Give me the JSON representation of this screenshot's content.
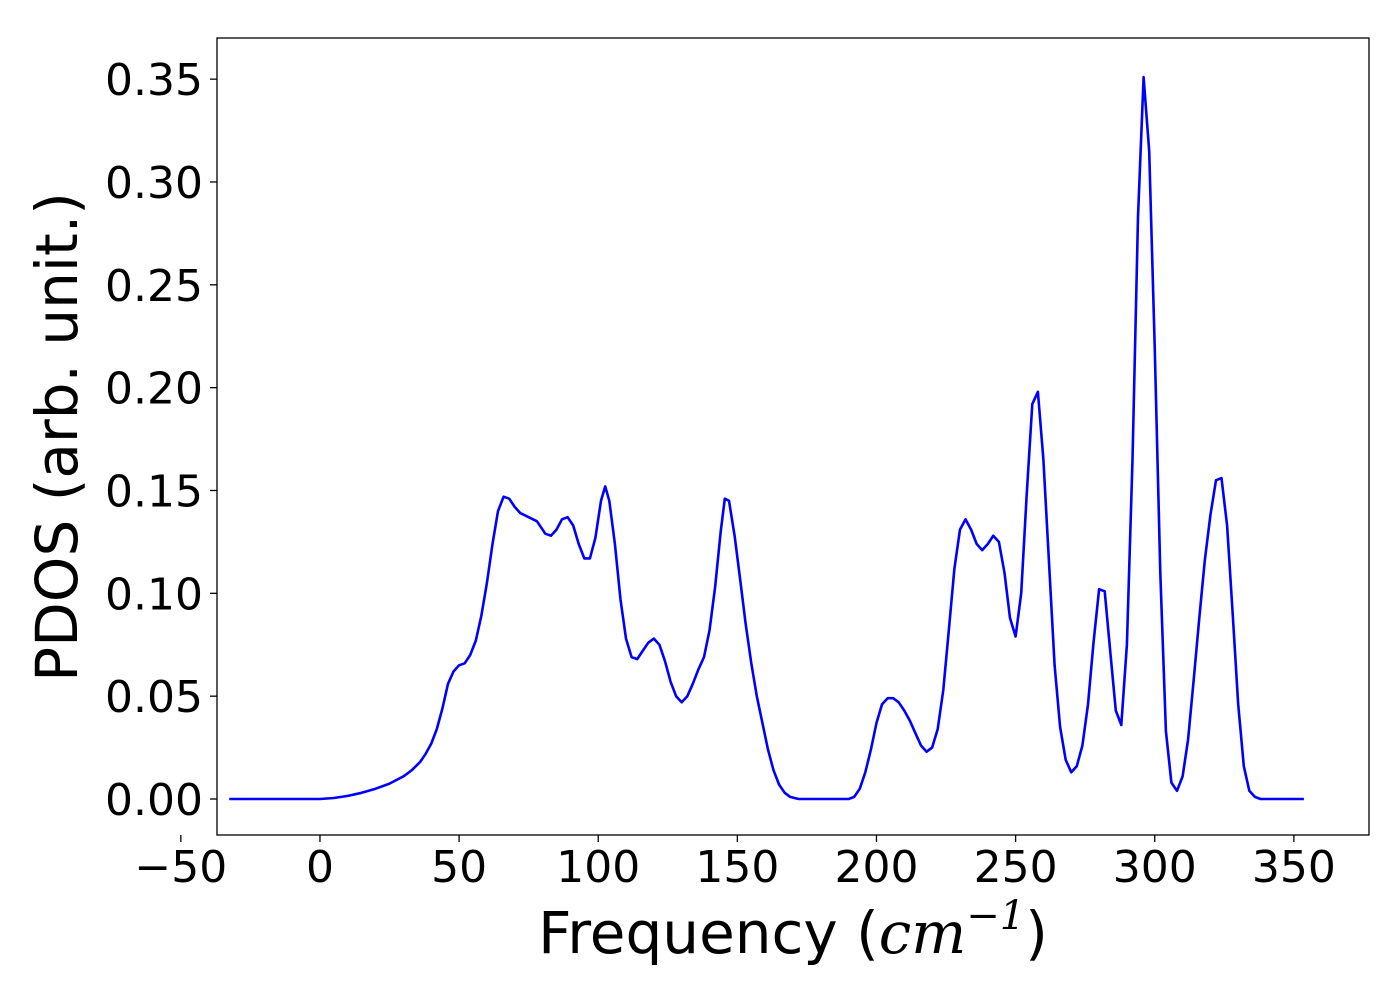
{
  "chart_data": {
    "type": "line",
    "title": "",
    "xlabel_prefix": "Frequency (",
    "xlabel_unit": "cm",
    "xlabel_exponent": "−1",
    "xlabel_suffix": ")",
    "ylabel": "PDOS (arb. unit.)",
    "xlim": [
      -37,
      377
    ],
    "ylim": [
      -0.0175,
      0.37
    ],
    "xticks": [
      -50,
      0,
      50,
      100,
      150,
      200,
      250,
      300,
      350
    ],
    "xtick_labels": [
      "−50",
      "0",
      "50",
      "100",
      "150",
      "200",
      "250",
      "300",
      "350"
    ],
    "yticks": [
      0.0,
      0.05,
      0.1,
      0.15,
      0.2,
      0.25,
      0.3,
      0.35
    ],
    "ytick_labels": [
      "0.00",
      "0.05",
      "0.10",
      "0.15",
      "0.20",
      "0.25",
      "0.30",
      "0.35"
    ],
    "grid": false,
    "series": [
      {
        "color": "#0000ff",
        "points": [
          [
            -32.6,
            0.0
          ],
          [
            0,
            0.0
          ],
          [
            5,
            0.0005
          ],
          [
            10,
            0.0015
          ],
          [
            15,
            0.003
          ],
          [
            20,
            0.005
          ],
          [
            25,
            0.0075
          ],
          [
            30,
            0.011
          ],
          [
            33,
            0.014
          ],
          [
            36,
            0.018
          ],
          [
            38,
            0.022
          ],
          [
            40,
            0.027
          ],
          [
            42,
            0.034
          ],
          [
            44,
            0.044
          ],
          [
            46,
            0.056
          ],
          [
            48,
            0.062
          ],
          [
            50,
            0.065
          ],
          [
            52,
            0.066
          ],
          [
            54,
            0.07
          ],
          [
            56,
            0.077
          ],
          [
            58,
            0.089
          ],
          [
            60,
            0.105
          ],
          [
            62,
            0.124
          ],
          [
            64,
            0.14
          ],
          [
            66,
            0.147
          ],
          [
            68,
            0.146
          ],
          [
            70,
            0.142
          ],
          [
            72,
            0.139
          ],
          [
            75,
            0.137
          ],
          [
            78,
            0.135
          ],
          [
            81,
            0.129
          ],
          [
            83,
            0.128
          ],
          [
            85,
            0.131
          ],
          [
            87,
            0.136
          ],
          [
            89,
            0.137
          ],
          [
            91,
            0.133
          ],
          [
            93,
            0.124
          ],
          [
            95,
            0.117
          ],
          [
            97,
            0.117
          ],
          [
            99,
            0.127
          ],
          [
            101,
            0.145
          ],
          [
            102.5,
            0.152
          ],
          [
            104,
            0.145
          ],
          [
            106,
            0.124
          ],
          [
            108,
            0.097
          ],
          [
            110,
            0.078
          ],
          [
            112,
            0.069
          ],
          [
            114,
            0.068
          ],
          [
            116,
            0.072
          ],
          [
            118,
            0.076
          ],
          [
            120,
            0.078
          ],
          [
            122,
            0.075
          ],
          [
            124,
            0.067
          ],
          [
            126,
            0.057
          ],
          [
            128,
            0.05
          ],
          [
            130,
            0.047
          ],
          [
            132,
            0.05
          ],
          [
            134,
            0.056
          ],
          [
            136,
            0.063
          ],
          [
            138,
            0.069
          ],
          [
            140,
            0.082
          ],
          [
            142,
            0.103
          ],
          [
            144,
            0.13
          ],
          [
            145.5,
            0.146
          ],
          [
            147,
            0.145
          ],
          [
            149,
            0.128
          ],
          [
            151,
            0.107
          ],
          [
            153,
            0.085
          ],
          [
            155,
            0.066
          ],
          [
            157,
            0.05
          ],
          [
            159,
            0.037
          ],
          [
            161,
            0.024
          ],
          [
            163,
            0.014
          ],
          [
            165,
            0.007
          ],
          [
            167,
            0.003
          ],
          [
            169,
            0.001
          ],
          [
            172,
            0.0
          ],
          [
            190,
            0.0
          ],
          [
            192,
            0.001
          ],
          [
            194,
            0.005
          ],
          [
            196,
            0.013
          ],
          [
            198,
            0.024
          ],
          [
            200,
            0.037
          ],
          [
            202,
            0.046
          ],
          [
            204,
            0.049
          ],
          [
            206,
            0.049
          ],
          [
            208,
            0.047
          ],
          [
            210,
            0.043
          ],
          [
            212,
            0.038
          ],
          [
            214,
            0.032
          ],
          [
            216,
            0.026
          ],
          [
            218,
            0.023
          ],
          [
            220,
            0.025
          ],
          [
            222,
            0.034
          ],
          [
            224,
            0.053
          ],
          [
            226,
            0.082
          ],
          [
            228,
            0.112
          ],
          [
            230,
            0.131
          ],
          [
            232,
            0.136
          ],
          [
            234,
            0.131
          ],
          [
            236,
            0.124
          ],
          [
            238,
            0.121
          ],
          [
            240,
            0.124
          ],
          [
            242,
            0.128
          ],
          [
            244,
            0.125
          ],
          [
            246,
            0.11
          ],
          [
            248,
            0.088
          ],
          [
            250,
            0.079
          ],
          [
            252,
            0.1
          ],
          [
            254,
            0.148
          ],
          [
            256,
            0.192
          ],
          [
            258,
            0.198
          ],
          [
            260,
            0.165
          ],
          [
            262,
            0.115
          ],
          [
            264,
            0.065
          ],
          [
            266,
            0.035
          ],
          [
            268,
            0.019
          ],
          [
            270,
            0.013
          ],
          [
            272,
            0.016
          ],
          [
            274,
            0.026
          ],
          [
            276,
            0.046
          ],
          [
            278,
            0.076
          ],
          [
            280,
            0.102
          ],
          [
            282,
            0.101
          ],
          [
            284,
            0.072
          ],
          [
            286,
            0.043
          ],
          [
            288,
            0.036
          ],
          [
            290,
            0.075
          ],
          [
            292,
            0.165
          ],
          [
            294,
            0.283
          ],
          [
            296,
            0.351
          ],
          [
            298,
            0.315
          ],
          [
            300,
            0.22
          ],
          [
            302,
            0.11
          ],
          [
            304,
            0.033
          ],
          [
            306,
            0.008
          ],
          [
            308,
            0.004
          ],
          [
            310,
            0.011
          ],
          [
            312,
            0.029
          ],
          [
            314,
            0.058
          ],
          [
            316,
            0.088
          ],
          [
            318,
            0.116
          ],
          [
            320,
            0.138
          ],
          [
            322,
            0.155
          ],
          [
            324,
            0.156
          ],
          [
            326,
            0.133
          ],
          [
            328,
            0.09
          ],
          [
            330,
            0.046
          ],
          [
            332,
            0.016
          ],
          [
            334,
            0.004
          ],
          [
            336,
            0.001
          ],
          [
            338,
            0.0
          ],
          [
            353.6,
            0.0
          ]
        ]
      }
    ]
  }
}
